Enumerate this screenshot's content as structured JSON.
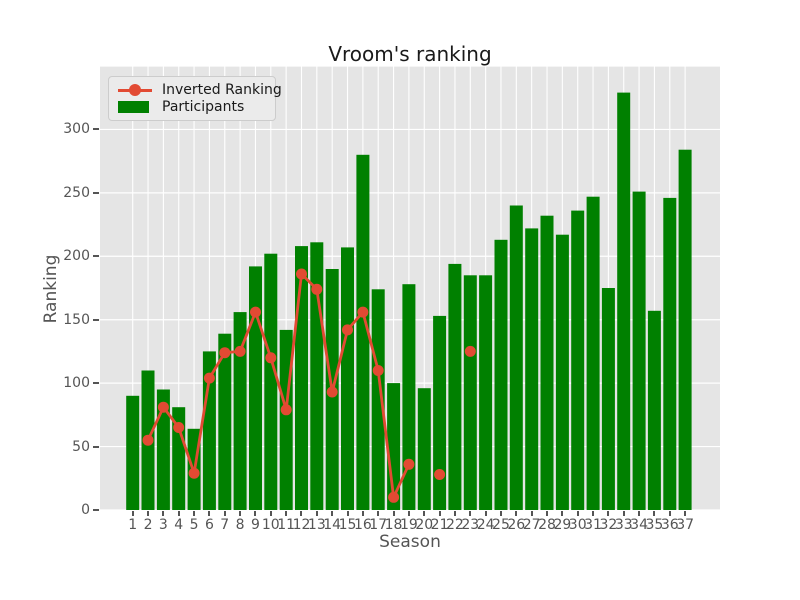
{
  "title": "Vroom's ranking",
  "legend": {
    "items": [
      {
        "label": "Inverted Ranking",
        "type": "line",
        "color": "#E24A33"
      },
      {
        "label": "Participants",
        "type": "patch",
        "color": "#008000"
      }
    ]
  },
  "chart_data": {
    "type": "bar",
    "title": "Vroom's ranking",
    "xlabel": "Season",
    "ylabel": "Ranking",
    "ylim": [
      0,
      350
    ],
    "yticks": [
      0,
      50,
      100,
      150,
      200,
      250,
      300
    ],
    "grid": true,
    "legend_position": "upper left",
    "plot_background": "#e5e5e5",
    "grid_color": "#ffffff",
    "categories": [
      1,
      2,
      3,
      4,
      5,
      6,
      7,
      8,
      9,
      10,
      11,
      12,
      13,
      14,
      15,
      16,
      17,
      18,
      19,
      20,
      21,
      22,
      23,
      24,
      25,
      26,
      27,
      28,
      29,
      30,
      31,
      32,
      33,
      34,
      35,
      36,
      37
    ],
    "series": [
      {
        "name": "Participants",
        "type": "bar",
        "color": "#008000",
        "values": [
          90,
          110,
          95,
          81,
          64,
          125,
          139,
          156,
          192,
          202,
          142,
          208,
          211,
          190,
          207,
          280,
          174,
          100,
          178,
          96,
          153,
          194,
          185,
          185,
          213,
          240,
          222,
          232,
          217,
          236,
          247,
          175,
          329,
          251,
          157,
          246,
          284
        ]
      },
      {
        "name": "Inverted Ranking",
        "type": "line",
        "color": "#E24A33",
        "marker": "circle",
        "values": [
          null,
          55,
          81,
          65,
          29,
          104,
          124,
          125,
          156,
          120,
          79,
          186,
          174,
          93,
          142,
          156,
          110,
          10,
          36,
          null,
          28,
          null,
          125,
          null,
          null,
          null,
          null,
          null,
          null,
          null,
          null,
          null,
          null,
          null,
          null,
          null,
          null
        ]
      }
    ]
  }
}
